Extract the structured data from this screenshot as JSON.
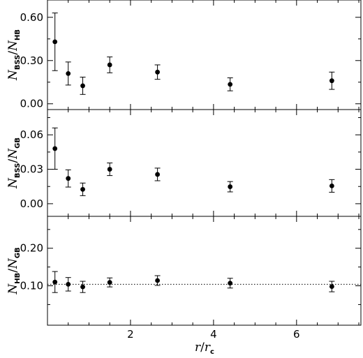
{
  "chart_data": [
    {
      "type": "scatter",
      "panel": "top",
      "ylabel": {
        "main": "N",
        "sub": "BSS",
        "sep": "/",
        "main2": "N",
        "sub2": "HB"
      },
      "ylim": [
        -0.04,
        0.72
      ],
      "yticks": [
        0.0,
        0.3,
        0.6
      ],
      "ytick_labels": [
        "0.00",
        "0.30",
        "0.60"
      ],
      "points": [
        {
          "x": 0.18,
          "y": 0.43,
          "err": 0.2
        },
        {
          "x": 0.5,
          "y": 0.21,
          "err": 0.08
        },
        {
          "x": 0.85,
          "y": 0.125,
          "err": 0.06
        },
        {
          "x": 1.5,
          "y": 0.27,
          "err": 0.055
        },
        {
          "x": 2.65,
          "y": 0.22,
          "err": 0.05
        },
        {
          "x": 4.4,
          "y": 0.135,
          "err": 0.045
        },
        {
          "x": 6.85,
          "y": 0.16,
          "err": 0.06
        }
      ]
    },
    {
      "type": "scatter",
      "panel": "middle",
      "ylabel": {
        "main": "N",
        "sub": "BSS",
        "sep": "/",
        "main2": "N",
        "sub2": "GB"
      },
      "ylim": [
        -0.011,
        0.082
      ],
      "yticks": [
        0.0,
        0.03,
        0.06
      ],
      "ytick_labels": [
        "0.00",
        "0.03",
        "0.06"
      ],
      "points": [
        {
          "x": 0.18,
          "y": 0.048,
          "err": 0.018
        },
        {
          "x": 0.5,
          "y": 0.022,
          "err": 0.0075
        },
        {
          "x": 0.85,
          "y": 0.0125,
          "err": 0.0055
        },
        {
          "x": 1.5,
          "y": 0.03,
          "err": 0.0055
        },
        {
          "x": 2.65,
          "y": 0.0255,
          "err": 0.0055
        },
        {
          "x": 4.4,
          "y": 0.0148,
          "err": 0.0045
        },
        {
          "x": 6.85,
          "y": 0.0155,
          "err": 0.0055
        }
      ]
    },
    {
      "type": "scatter",
      "panel": "bottom",
      "ylabel": {
        "main": "N",
        "sub": "HB",
        "sep": "/",
        "main2": "N",
        "sub2": "GB"
      },
      "ylim": [
        -0.005,
        0.285
      ],
      "yticks": [
        0.1,
        0.2
      ],
      "ytick_labels": [
        "0.10",
        "0.20"
      ],
      "reference_line": {
        "y": 0.104,
        "style": "dotted"
      },
      "xlim": [
        0.0,
        7.55
      ],
      "xticks": [
        2,
        4,
        6
      ],
      "xtick_labels": [
        "2",
        "4",
        "6"
      ],
      "xlabel": {
        "main": "r",
        "sep": "/",
        "main2": "r",
        "sub2": "c"
      },
      "points": [
        {
          "x": 0.18,
          "y": 0.11,
          "err": 0.028
        },
        {
          "x": 0.5,
          "y": 0.104,
          "err": 0.018
        },
        {
          "x": 0.85,
          "y": 0.097,
          "err": 0.015
        },
        {
          "x": 1.5,
          "y": 0.109,
          "err": 0.012
        },
        {
          "x": 2.65,
          "y": 0.114,
          "err": 0.013
        },
        {
          "x": 4.4,
          "y": 0.107,
          "err": 0.013
        },
        {
          "x": 6.85,
          "y": 0.098,
          "err": 0.014
        }
      ]
    }
  ]
}
